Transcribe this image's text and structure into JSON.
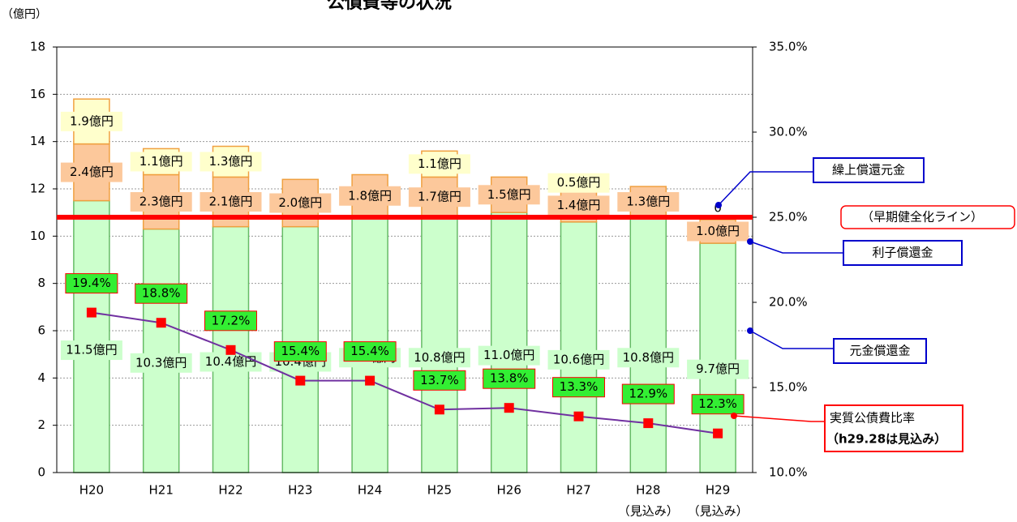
{
  "chart_data": {
    "type": "bar",
    "stacked": true,
    "title": "公債費等の状況",
    "y_label": "（億円）",
    "categories": [
      "H20",
      "H21",
      "H22",
      "H23",
      "H24",
      "H25",
      "H26",
      "H27",
      "H28",
      "H29"
    ],
    "x_sublabels": [
      null,
      null,
      null,
      null,
      null,
      null,
      null,
      null,
      "（見込み）",
      "（見込み）"
    ],
    "ylim": [
      0,
      18
    ],
    "yticks": [
      0,
      2,
      4,
      6,
      8,
      10,
      12,
      14,
      16,
      18
    ],
    "y2lim": [
      10,
      35
    ],
    "y2ticks": [
      {
        "value": 10,
        "label": "10.0%"
      },
      {
        "value": 15,
        "label": "15.0%"
      },
      {
        "value": 20,
        "label": "20.0%"
      },
      {
        "value": 25,
        "label": "25.0%"
      },
      {
        "value": 30,
        "label": "30.0%"
      },
      {
        "value": 35,
        "label": "35.0%"
      }
    ],
    "grid": true,
    "series": [
      {
        "name": "元金償還金",
        "color": "#ccffcc",
        "border": "#66bb66",
        "values": [
          11.5,
          10.3,
          10.4,
          10.4,
          10.8,
          10.8,
          11.0,
          10.6,
          10.8,
          9.7
        ],
        "value_labels": [
          "11.5億円",
          "10.3億円",
          "10.4億円",
          "10.4億円",
          "10.8億円",
          "10.8億円",
          "11.0億円",
          "10.6億円",
          "10.8億円",
          "9.7億円"
        ]
      },
      {
        "name": "利子償還金",
        "color": "#fcc89b",
        "border": "#f0a040",
        "values": [
          2.4,
          2.3,
          2.1,
          2.0,
          1.8,
          1.7,
          1.5,
          1.4,
          1.3,
          1.0
        ],
        "value_labels": [
          "2.4億円",
          "2.3億円",
          "2.1億円",
          "2.0億円",
          "1.8億円",
          "1.7億円",
          "1.5億円",
          "1.4億円",
          "1.3億円",
          "1.0億円"
        ]
      },
      {
        "name": "繰上償還元金",
        "color": "#ffffcc",
        "border": "#f0a040",
        "values": [
          1.9,
          1.1,
          1.3,
          null,
          null,
          1.1,
          null,
          0.5,
          null,
          0
        ],
        "value_labels": [
          "1.9億円",
          "1.1億円",
          "1.3億円",
          null,
          null,
          "1.1億円",
          null,
          "0.5億円",
          null,
          "0"
        ]
      },
      {
        "name": "実質公債費比率",
        "type": "line",
        "axis": "y2",
        "color": "#7030a0",
        "marker_color": "#ff0000",
        "values": [
          19.4,
          18.8,
          17.2,
          15.4,
          15.4,
          13.7,
          13.8,
          13.3,
          12.9,
          12.3
        ],
        "value_labels": [
          "19.4%",
          "18.8%",
          "17.2%",
          "15.4%",
          "15.4%",
          "13.7%",
          "13.8%",
          "13.3%",
          "12.9%",
          "12.3%"
        ]
      }
    ],
    "series_note": "（h29.28は見込み）",
    "reference_line": {
      "value": 25,
      "axis": "y2",
      "color": "#ff0000",
      "label": "（早期健全化ライン）"
    }
  }
}
